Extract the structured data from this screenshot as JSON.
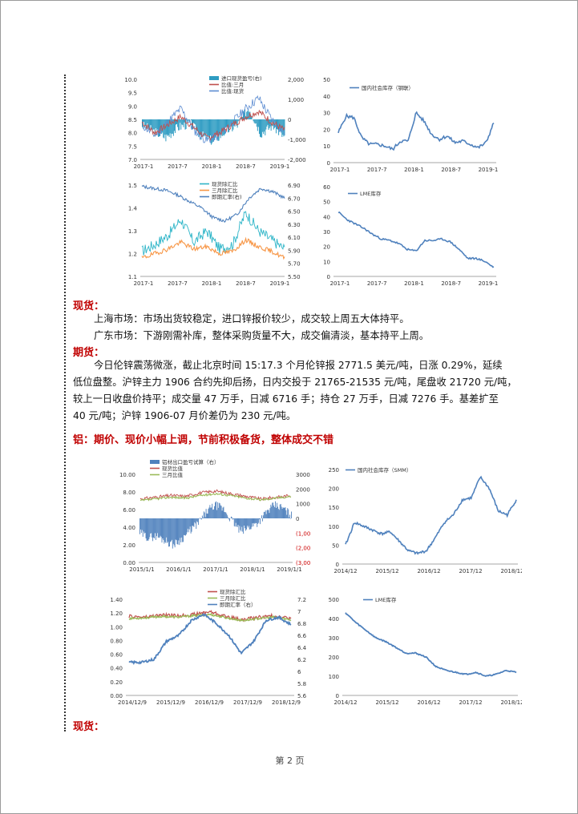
{
  "charts": {
    "c1": {
      "type": "bar-line",
      "legend": [
        "进口现货盈亏(右)",
        "比值:三月",
        "比值:现货"
      ],
      "y_left_ticks": [
        "10.0",
        "9.5",
        "9.0",
        "8.5",
        "8.0",
        "7.5",
        "7.0"
      ],
      "y_right_ticks": [
        "2,000",
        "1,000",
        "0",
        "-1,000",
        "-2,000"
      ],
      "x_ticks": [
        "2017-1",
        "2017-7",
        "2018-1",
        "2018-7",
        "2019-1"
      ],
      "colors": {
        "bar": "#2e9cc2",
        "line1": "#c0504d",
        "line2": "#5b8bd1"
      }
    },
    "c2": {
      "type": "line",
      "legend": [
        "国内社会库存（钢联）"
      ],
      "y_ticks": [
        "50",
        "40",
        "30",
        "20",
        "10",
        "0"
      ],
      "x_ticks": [
        "2017-1",
        "2017-7",
        "2018-1",
        "2018-7",
        "2019-1"
      ],
      "color": "#4f81bd"
    },
    "c3": {
      "type": "line",
      "legend": [
        "现货除汇比",
        "三月除汇比",
        "即期汇率(右)"
      ],
      "y_left_ticks": [
        "1.5",
        "1.4",
        "1.3",
        "1.2",
        "1.1"
      ],
      "y_right_ticks": [
        "6.90",
        "6.70",
        "6.50",
        "6.30",
        "6.10",
        "5.90",
        "5.70",
        "5.50"
      ],
      "x_ticks": [
        "2017-1",
        "2017-7",
        "2018-1",
        "2018-7",
        "2019-1"
      ],
      "colors": {
        "line1": "#2eb5c8",
        "line2": "#f79646",
        "line3": "#4f81bd"
      }
    },
    "c4": {
      "type": "line",
      "legend": [
        "LME库存"
      ],
      "y_ticks": [
        "60",
        "50",
        "40",
        "30",
        "20",
        "10",
        "0"
      ],
      "x_ticks": [
        "2017-1",
        "2017-7",
        "2018-1",
        "2018-7",
        "2019-1"
      ],
      "color": "#4f81bd"
    },
    "c5": {
      "type": "bar-line",
      "legend": [
        "铝材出口盈亏试算（右）",
        "现货比值",
        "三月比值"
      ],
      "y_left_ticks": [
        "10.00",
        "8.00",
        "6.00",
        "4.00",
        "2.00",
        "0.00"
      ],
      "y_right_ticks": [
        "3000",
        "2000",
        "1000",
        "0",
        "(1,000",
        "(2,000",
        "(3,000"
      ],
      "x_ticks": [
        "2015/1/1",
        "2016/1/1",
        "2017/1/1",
        "2018/1/1",
        "2019/1/1"
      ],
      "colors": {
        "bar": "#4f81bd",
        "line1": "#c0504d",
        "line2": "#9bbb59"
      }
    },
    "c6": {
      "type": "line",
      "legend": [
        "国内社会库存（SMM）"
      ],
      "y_ticks": [
        "250",
        "200",
        "150",
        "100",
        "50",
        "0"
      ],
      "x_ticks": [
        "2014/12",
        "2015/12",
        "2016/12",
        "2017/12",
        "2018/12"
      ],
      "color": "#4f81bd"
    },
    "c7": {
      "type": "line",
      "legend": [
        "现货除汇比",
        "三月除汇比",
        "即期汇率（右）"
      ],
      "y_left_ticks": [
        "1.40",
        "1.20",
        "1.00",
        "0.80",
        "0.60",
        "0.40",
        "0.20",
        "0.00"
      ],
      "y_right_ticks": [
        "7.2",
        "7",
        "6.8",
        "6.6",
        "6.4",
        "6.2",
        "6",
        "5.8",
        "5.6"
      ],
      "x_ticks": [
        "2014/12/9",
        "2015/12/9",
        "2016/12/9",
        "2017/12/9",
        "2018/12/9"
      ],
      "colors": {
        "line1": "#c0504d",
        "line2": "#9bbb59",
        "line3": "#4f81bd"
      }
    },
    "c8": {
      "type": "line",
      "legend": [
        "LME库存"
      ],
      "y_ticks": [
        "500",
        "400",
        "300",
        "200",
        "100",
        "0"
      ],
      "x_ticks": [
        "2014/12",
        "2015/12",
        "2016/12",
        "2017/12",
        "2018/12"
      ],
      "color": "#4f81bd"
    }
  },
  "text": {
    "spot_head_1": "现货：",
    "spot_sh": "上海市场：市场出货较稳定，进口锌报价较少，成交较上周五大体持平。",
    "spot_gd": "广东市场：下游刚需补库，整体采购货量不大，成交偏清淡，基本持平上周。",
    "futures_head": "期货：",
    "futures_l1": "今日伦锌震荡微涨，截止北京时间 15:17.3 个月伦锌报 2771.5 美元/吨，日涨 0.29%，延续",
    "futures_l2": "低位盘整。沪锌主力 1906 合约先抑后扬，日内交投于 21765-21535 元/吨，尾盘收 21720 元/吨，",
    "futures_l3": "较上一日收盘价持平；成交量 47 万手，日减 6716 手；持仓 27 万手，日减 7276 手。基差扩至",
    "futures_l4": "40 元/吨；沪锌 1906-07 月价差仍为 230 元/吨。",
    "al_head": "铝：期价、现价小幅上调，节前积极备货，整体成交不错",
    "spot_head_2": "现货：",
    "footer": "第 2 页"
  }
}
